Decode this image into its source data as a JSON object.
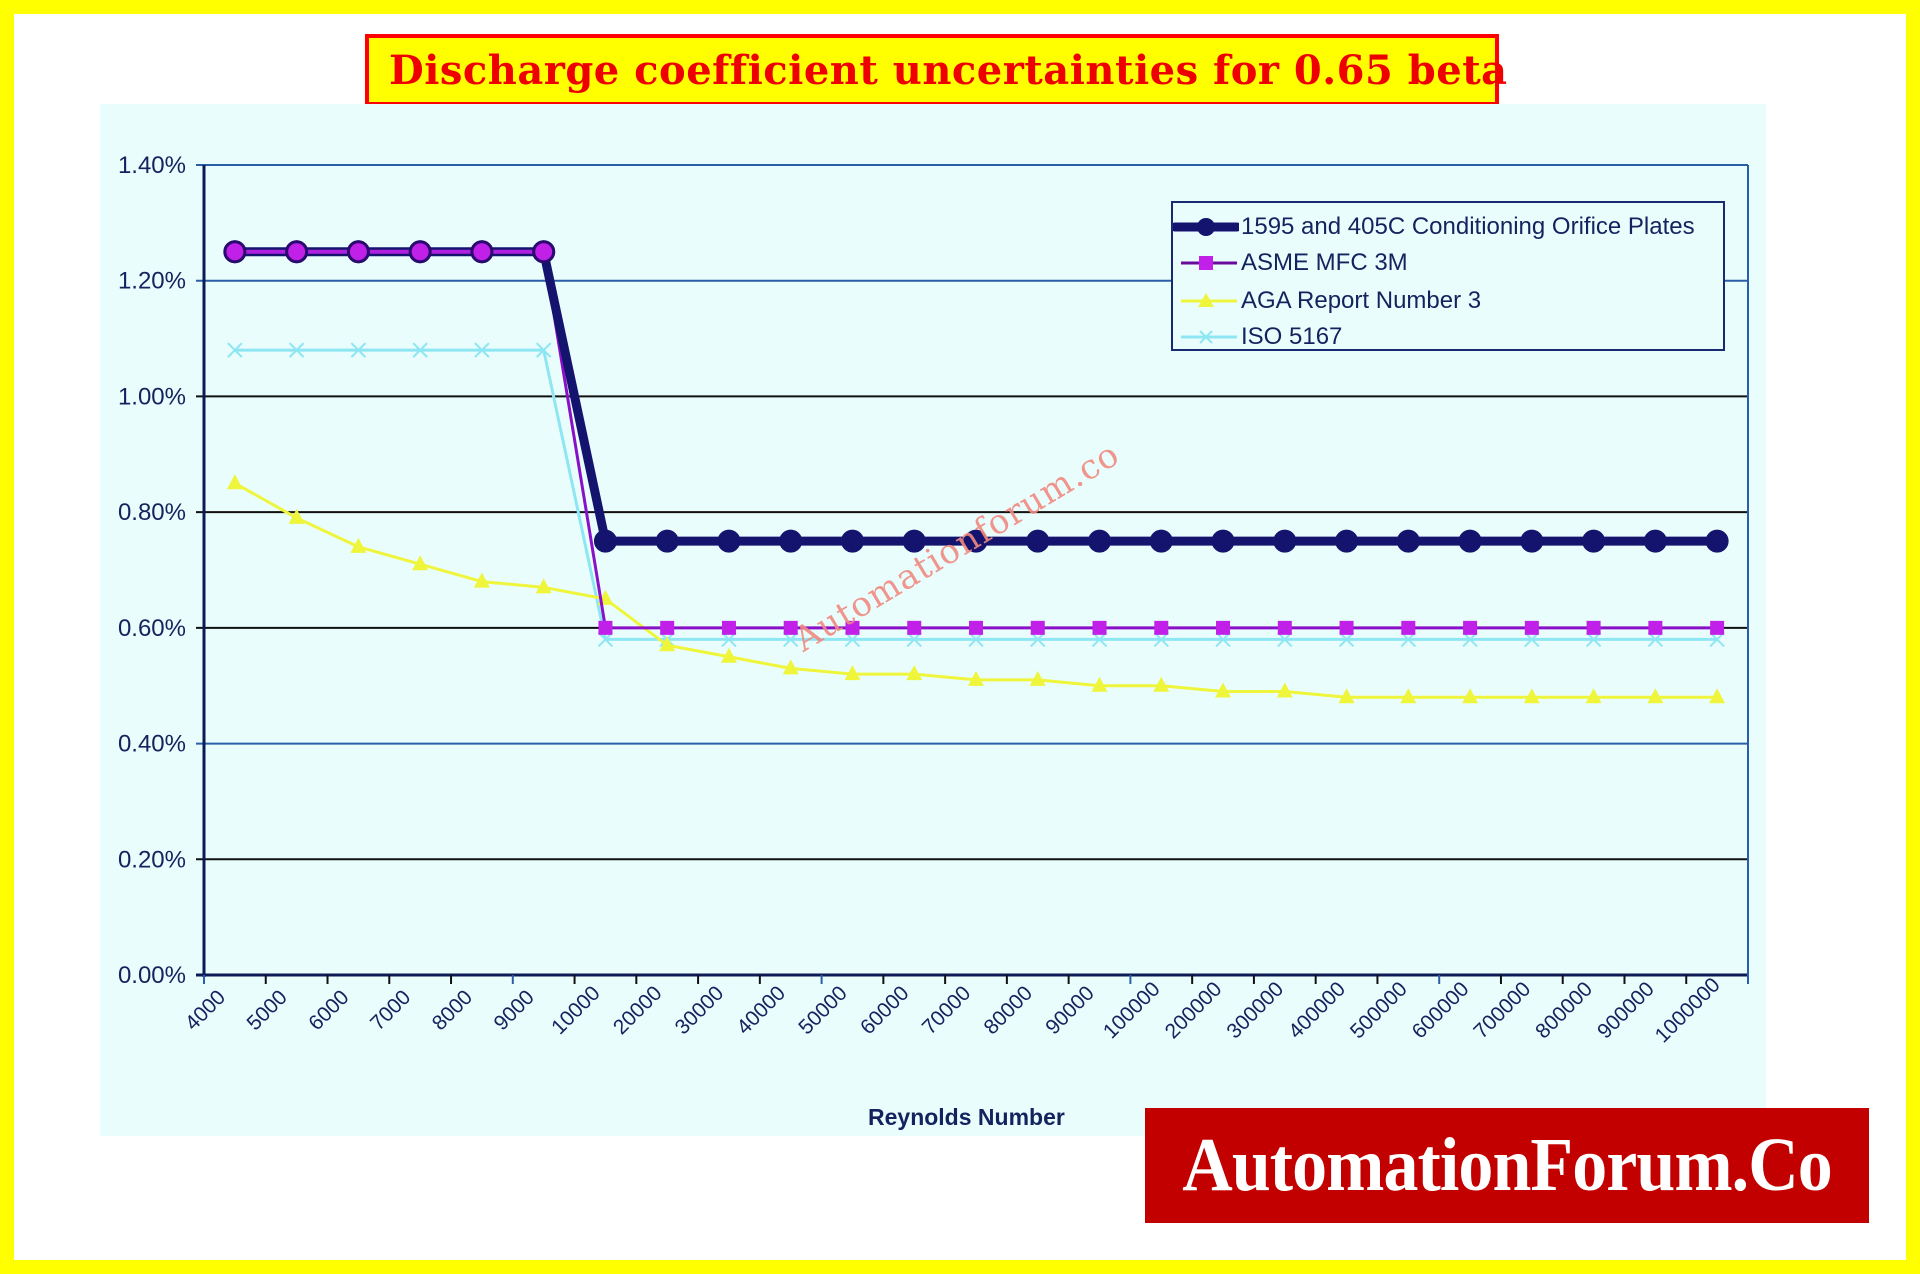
{
  "header": {
    "title": "Discharge coefficient uncertainties for 0.65 beta"
  },
  "watermark": {
    "text": "Automationforum.co"
  },
  "banner": {
    "text": "AutomationForum.Co"
  },
  "colors": {
    "frame": "#ffff00",
    "title_border": "#ff0000",
    "title_text": "#ee0000",
    "panel_bg": "#eafdfd",
    "banner_bg": "#c30000"
  },
  "chart_data": {
    "type": "line",
    "title": "Discharge coefficient uncertainties for 0.65 beta",
    "xlabel": "Reynolds Number",
    "ylabel": "",
    "ylim": [
      0,
      1.4
    ],
    "yticks": [
      "0.00%",
      "0.20%",
      "0.40%",
      "0.60%",
      "0.80%",
      "1.00%",
      "1.20%",
      "1.40%"
    ],
    "grid": true,
    "legend_position": "top-right",
    "categories": [
      "4000",
      "5000",
      "6000",
      "7000",
      "8000",
      "9000",
      "10000",
      "20000",
      "30000",
      "40000",
      "50000",
      "60000",
      "70000",
      "80000",
      "90000",
      "100000",
      "200000",
      "300000",
      "400000",
      "500000",
      "600000",
      "700000",
      "800000",
      "900000",
      "1000000"
    ],
    "series": [
      {
        "name": "1595 and 405C Conditioning Orifice Plates",
        "color": "#14146e",
        "marker": "circle",
        "values": [
          1.25,
          1.25,
          1.25,
          1.25,
          1.25,
          1.25,
          0.75,
          0.75,
          0.75,
          0.75,
          0.75,
          0.75,
          0.75,
          0.75,
          0.75,
          0.75,
          0.75,
          0.75,
          0.75,
          0.75,
          0.75,
          0.75,
          0.75,
          0.75,
          0.75
        ]
      },
      {
        "name": "ASME MFC 3M",
        "color": "#9a0fd0",
        "marker": "square",
        "values": [
          1.25,
          1.25,
          1.25,
          1.25,
          1.25,
          1.25,
          0.6,
          0.6,
          0.6,
          0.6,
          0.6,
          0.6,
          0.6,
          0.6,
          0.6,
          0.6,
          0.6,
          0.6,
          0.6,
          0.6,
          0.6,
          0.6,
          0.6,
          0.6,
          0.6
        ]
      },
      {
        "name": "AGA Report Number 3",
        "color": "#eef53a",
        "marker": "triangle",
        "values": [
          0.85,
          0.79,
          0.74,
          0.71,
          0.68,
          0.67,
          0.65,
          0.57,
          0.55,
          0.53,
          0.52,
          0.52,
          0.51,
          0.51,
          0.5,
          0.5,
          0.49,
          0.49,
          0.48,
          0.48,
          0.48,
          0.48,
          0.48,
          0.48,
          0.48
        ]
      },
      {
        "name": "ISO 5167",
        "color": "#8ee6f2",
        "marker": "x",
        "values": [
          1.08,
          1.08,
          1.08,
          1.08,
          1.08,
          1.08,
          0.58,
          0.58,
          0.58,
          0.58,
          0.58,
          0.58,
          0.58,
          0.58,
          0.58,
          0.58,
          0.58,
          0.58,
          0.58,
          0.58,
          0.58,
          0.58,
          0.58,
          0.58,
          0.58
        ]
      }
    ]
  }
}
